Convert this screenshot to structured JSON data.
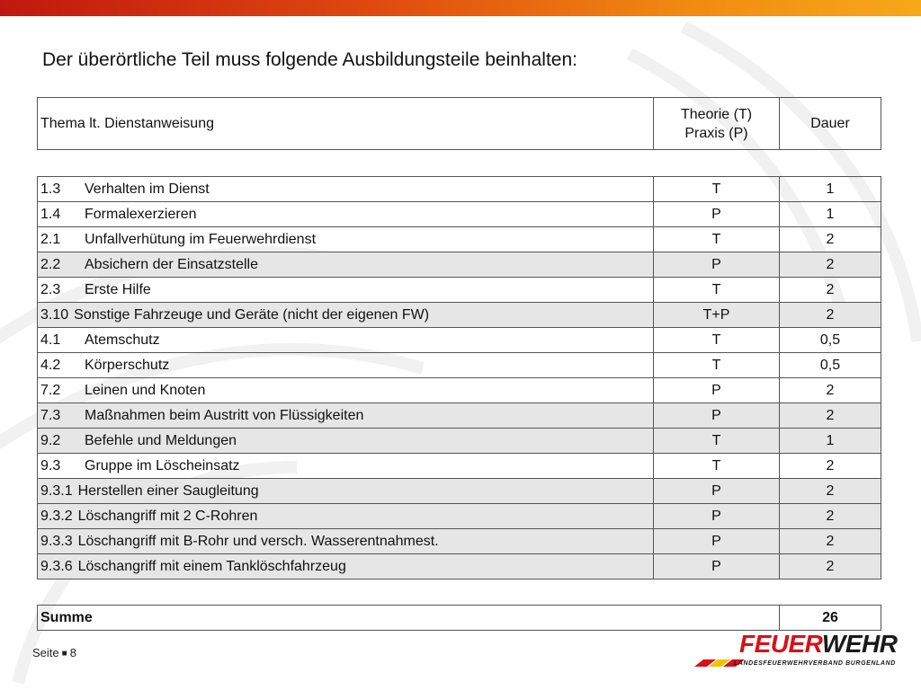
{
  "title": "Der überörtliche Teil muss folgende Ausbildungsteile beinhalten:",
  "header": {
    "topic": "Thema lt. Dienstanweisung",
    "type_line1": "Theorie (T)",
    "type_line2": "Praxis (P)",
    "duration": "Dauer"
  },
  "rows": [
    {
      "num": "1.3",
      "topic": "Verhalten im Dienst",
      "type": "T",
      "duration": "1"
    },
    {
      "num": "1.4",
      "topic": "Formalexerzieren",
      "type": "P",
      "duration": "1"
    },
    {
      "num": "2.1",
      "topic": "Unfallverhütung im Feuerwehrdienst",
      "type": "T",
      "duration": "2"
    },
    {
      "num": "2.2",
      "topic": "Absichern der Einsatzstelle",
      "type": "P",
      "duration": "2"
    },
    {
      "num": "2.3",
      "topic": "Erste Hilfe",
      "type": "T",
      "duration": "2"
    },
    {
      "num": "3.10",
      "topic": "Sonstige Fahrzeuge und Geräte (nicht der eigenen FW)",
      "type": "T+P",
      "duration": "2"
    },
    {
      "num": "4.1",
      "topic": "Atemschutz",
      "type": "T",
      "duration": "0,5"
    },
    {
      "num": "4.2",
      "topic": "Körperschutz",
      "type": "T",
      "duration": "0,5"
    },
    {
      "num": "7.2",
      "topic": "Leinen und Knoten",
      "type": "P",
      "duration": "2"
    },
    {
      "num": "7.3",
      "topic": "Maßnahmen beim Austritt von Flüssigkeiten",
      "type": "P",
      "duration": "2"
    },
    {
      "num": "9.2",
      "topic": "Befehle und Meldungen",
      "type": "T",
      "duration": "1"
    },
    {
      "num": "9.3",
      "topic": "Gruppe im Löscheinsatz",
      "type": "T",
      "duration": "2"
    },
    {
      "num": "9.3.1",
      "topic": "Herstellen einer Saugleitung",
      "type": "P",
      "duration": "2"
    },
    {
      "num": "9.3.2",
      "topic": "Löschangriff mit 2 C-Rohren",
      "type": "P",
      "duration": "2"
    },
    {
      "num": "9.3.3",
      "topic": "Löschangriff mit B-Rohr und versch. Wasserentnahmest.",
      "type": "P",
      "duration": "2"
    },
    {
      "num": "9.3.6",
      "topic": "Löschangriff mit einem Tanklöschfahrzeug",
      "type": "P",
      "duration": "2"
    }
  ],
  "summary": {
    "label": "Summe",
    "total": "26"
  },
  "footer": {
    "page_label": "Seite",
    "page_number": "8"
  },
  "logo": {
    "word_part1": "FEUER",
    "word_part2": "WEHR",
    "subtitle": "LANDESFEUERWEHRVERBAND BURGENLAND",
    "stripe_colors": [
      "#d5121b",
      "#f2c200",
      "#d5121b"
    ]
  },
  "colors": {
    "accent_start": "#c0180f",
    "accent_end": "#f7a81a",
    "row_shade": "#e6e6e6"
  }
}
